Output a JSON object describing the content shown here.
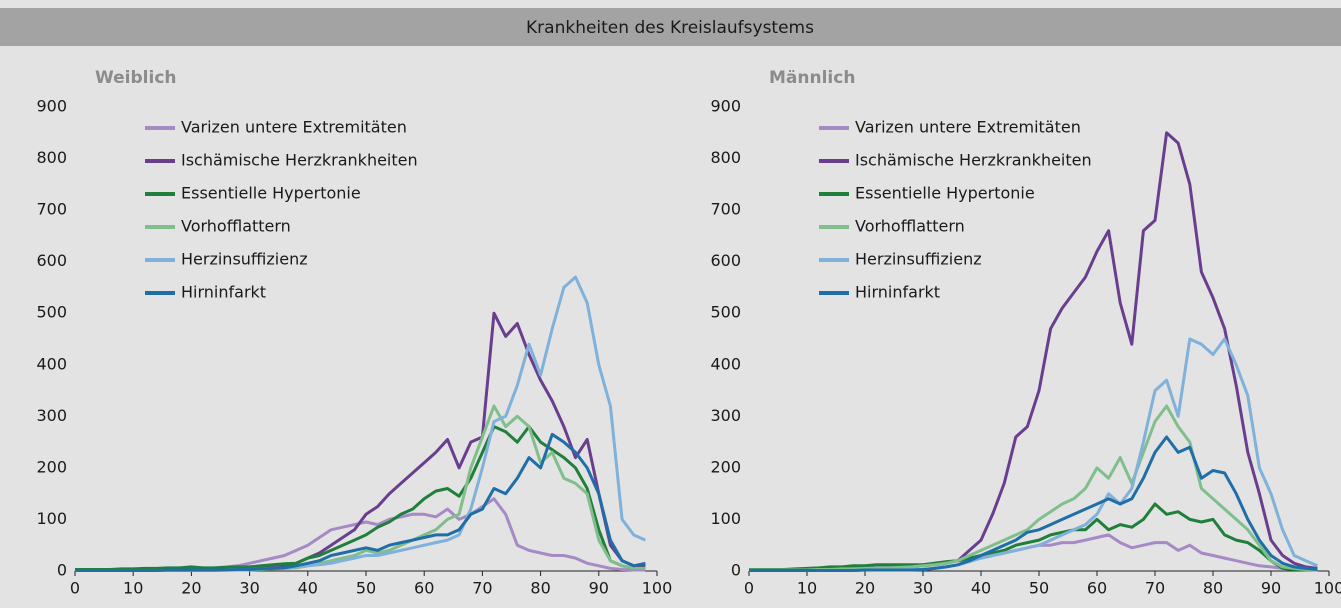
{
  "title": "Krankheiten des Kreislaufsystems",
  "chart_data": [
    {
      "type": "line",
      "title": "Weiblich",
      "xlim": [
        0,
        100
      ],
      "ylim": [
        0,
        900
      ],
      "xticks": [
        0,
        10,
        20,
        30,
        40,
        50,
        60,
        70,
        80,
        90,
        100
      ],
      "yticks": [
        0,
        100,
        200,
        300,
        400,
        500,
        600,
        700,
        800,
        900
      ],
      "x": [
        0,
        2,
        4,
        6,
        8,
        10,
        12,
        14,
        16,
        18,
        20,
        22,
        24,
        26,
        28,
        30,
        32,
        34,
        36,
        38,
        40,
        42,
        44,
        46,
        48,
        50,
        52,
        54,
        56,
        58,
        60,
        62,
        64,
        66,
        68,
        70,
        72,
        74,
        76,
        78,
        80,
        82,
        84,
        86,
        88,
        90,
        92,
        94,
        96,
        98
      ],
      "series": [
        {
          "name": "Varizen untere Extremitäten",
          "color": "#a68ac6",
          "values": [
            2,
            2,
            2,
            2,
            2,
            2,
            3,
            3,
            3,
            4,
            5,
            5,
            6,
            8,
            10,
            15,
            20,
            25,
            30,
            40,
            50,
            65,
            80,
            85,
            90,
            95,
            90,
            100,
            105,
            110,
            110,
            105,
            120,
            100,
            110,
            125,
            140,
            110,
            50,
            40,
            35,
            30,
            30,
            25,
            15,
            10,
            5,
            3,
            2,
            2
          ]
        },
        {
          "name": "Ischämische Herzkrankheiten",
          "color": "#6a3e8e",
          "values": [
            2,
            2,
            2,
            2,
            2,
            2,
            2,
            3,
            3,
            3,
            3,
            4,
            4,
            5,
            5,
            6,
            7,
            8,
            10,
            15,
            25,
            35,
            50,
            65,
            80,
            110,
            125,
            150,
            170,
            190,
            210,
            230,
            255,
            200,
            250,
            260,
            500,
            455,
            480,
            420,
            370,
            330,
            280,
            220,
            255,
            150,
            50,
            20,
            10,
            10
          ]
        },
        {
          "name": "Essentielle Hypertonie",
          "color": "#1f7f3b",
          "values": [
            3,
            3,
            3,
            3,
            4,
            4,
            5,
            5,
            6,
            6,
            8,
            6,
            6,
            7,
            8,
            8,
            10,
            12,
            14,
            15,
            25,
            30,
            40,
            50,
            60,
            70,
            85,
            95,
            110,
            120,
            140,
            155,
            160,
            145,
            180,
            230,
            280,
            270,
            250,
            280,
            250,
            235,
            220,
            200,
            160,
            80,
            20,
            10,
            5,
            5
          ]
        },
        {
          "name": "Vorhofflattern",
          "color": "#80be8c",
          "values": [
            1,
            1,
            1,
            1,
            1,
            1,
            1,
            1,
            1,
            1,
            1,
            1,
            1,
            2,
            2,
            2,
            3,
            4,
            5,
            6,
            10,
            15,
            20,
            25,
            30,
            40,
            35,
            40,
            50,
            60,
            70,
            80,
            100,
            110,
            200,
            260,
            320,
            280,
            300,
            280,
            210,
            230,
            180,
            170,
            150,
            60,
            20,
            10,
            5,
            5
          ]
        },
        {
          "name": "Herzinsuffizienz",
          "color": "#7fb1da",
          "values": [
            1,
            1,
            1,
            1,
            1,
            1,
            1,
            1,
            1,
            1,
            2,
            2,
            2,
            2,
            3,
            3,
            4,
            5,
            6,
            8,
            10,
            12,
            15,
            20,
            25,
            30,
            30,
            35,
            40,
            45,
            50,
            55,
            60,
            70,
            120,
            200,
            290,
            300,
            360,
            440,
            380,
            470,
            550,
            570,
            520,
            400,
            320,
            100,
            70,
            60
          ]
        },
        {
          "name": "Hirninfarkt",
          "color": "#1f6ea8",
          "values": [
            1,
            1,
            1,
            1,
            1,
            1,
            1,
            1,
            2,
            2,
            2,
            2,
            2,
            2,
            3,
            3,
            4,
            5,
            6,
            10,
            15,
            20,
            30,
            35,
            40,
            45,
            40,
            50,
            55,
            60,
            65,
            70,
            70,
            80,
            110,
            120,
            160,
            150,
            180,
            220,
            200,
            265,
            250,
            230,
            200,
            150,
            60,
            20,
            10,
            15
          ]
        }
      ]
    },
    {
      "type": "line",
      "title": "Männlich",
      "xlim": [
        0,
        100
      ],
      "ylim": [
        0,
        900
      ],
      "xticks": [
        0,
        10,
        20,
        30,
        40,
        50,
        60,
        70,
        80,
        90,
        100
      ],
      "yticks": [
        0,
        100,
        200,
        300,
        400,
        500,
        600,
        700,
        800,
        900
      ],
      "x": [
        0,
        2,
        4,
        6,
        8,
        10,
        12,
        14,
        16,
        18,
        20,
        22,
        24,
        26,
        28,
        30,
        32,
        34,
        36,
        38,
        40,
        42,
        44,
        46,
        48,
        50,
        52,
        54,
        56,
        58,
        60,
        62,
        64,
        66,
        68,
        70,
        72,
        74,
        76,
        78,
        80,
        82,
        84,
        86,
        88,
        90,
        92,
        94,
        96,
        98
      ],
      "series": [
        {
          "name": "Varizen untere Extremitäten",
          "color": "#a68ac6",
          "values": [
            3,
            3,
            3,
            3,
            3,
            3,
            3,
            4,
            4,
            5,
            5,
            6,
            7,
            8,
            10,
            12,
            15,
            18,
            20,
            22,
            25,
            30,
            35,
            40,
            45,
            50,
            50,
            55,
            55,
            60,
            65,
            70,
            55,
            45,
            50,
            55,
            55,
            40,
            50,
            35,
            30,
            25,
            20,
            15,
            10,
            8,
            5,
            4,
            3,
            2
          ]
        },
        {
          "name": "Ischämische Herzkrankheiten",
          "color": "#6a3e8e",
          "values": [
            2,
            2,
            2,
            2,
            2,
            2,
            3,
            3,
            4,
            4,
            5,
            5,
            6,
            6,
            8,
            10,
            12,
            15,
            20,
            40,
            60,
            110,
            170,
            260,
            280,
            350,
            470,
            510,
            540,
            570,
            620,
            660,
            520,
            440,
            660,
            680,
            850,
            830,
            750,
            580,
            530,
            470,
            360,
            230,
            150,
            60,
            30,
            15,
            8,
            5
          ]
        },
        {
          "name": "Essentielle Hypertonie",
          "color": "#1f7f3b",
          "values": [
            3,
            3,
            3,
            3,
            4,
            5,
            6,
            8,
            8,
            10,
            10,
            12,
            12,
            12,
            12,
            12,
            15,
            18,
            20,
            25,
            30,
            35,
            40,
            50,
            55,
            60,
            70,
            75,
            80,
            80,
            100,
            80,
            90,
            85,
            100,
            130,
            110,
            115,
            100,
            95,
            100,
            70,
            60,
            55,
            40,
            20,
            5,
            3,
            2,
            2
          ]
        },
        {
          "name": "Vorhofflattern",
          "color": "#80be8c",
          "values": [
            2,
            2,
            2,
            2,
            2,
            2,
            3,
            3,
            4,
            4,
            5,
            5,
            6,
            7,
            8,
            10,
            12,
            15,
            20,
            30,
            40,
            50,
            60,
            70,
            80,
            100,
            115,
            130,
            140,
            160,
            200,
            180,
            220,
            170,
            230,
            290,
            320,
            280,
            250,
            160,
            140,
            120,
            100,
            80,
            50,
            20,
            8,
            5,
            3,
            2
          ]
        },
        {
          "name": "Herzinsuffizienz",
          "color": "#7fb1da",
          "values": [
            1,
            1,
            1,
            1,
            1,
            1,
            1,
            1,
            1,
            1,
            2,
            2,
            2,
            2,
            3,
            3,
            5,
            8,
            12,
            18,
            25,
            30,
            35,
            40,
            45,
            50,
            60,
            70,
            80,
            90,
            110,
            150,
            130,
            160,
            250,
            350,
            370,
            300,
            450,
            440,
            420,
            450,
            400,
            340,
            200,
            150,
            80,
            30,
            20,
            10
          ]
        },
        {
          "name": "Hirninfarkt",
          "color": "#1f6ea8",
          "values": [
            1,
            1,
            1,
            1,
            1,
            1,
            1,
            1,
            1,
            1,
            2,
            2,
            2,
            2,
            2,
            3,
            5,
            8,
            12,
            20,
            30,
            40,
            50,
            60,
            75,
            80,
            90,
            100,
            110,
            120,
            130,
            140,
            130,
            140,
            180,
            230,
            260,
            230,
            240,
            180,
            195,
            190,
            150,
            100,
            60,
            30,
            15,
            8,
            5,
            3
          ]
        }
      ]
    }
  ]
}
